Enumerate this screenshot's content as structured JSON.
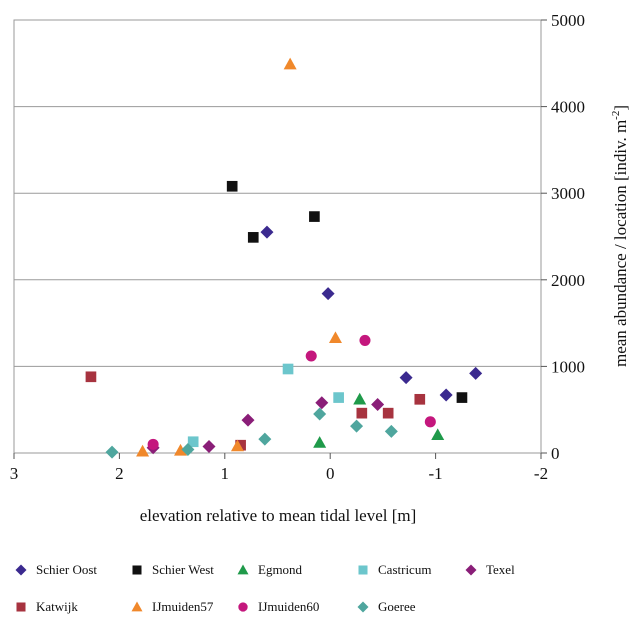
{
  "chart_data": {
    "type": "scatter",
    "title": "",
    "xlabel": "elevation relative to mean tidal level [m]",
    "ylabel": "mean abundance / location [indiv. m",
    "ylabel_sup": "-2",
    "ylabel_end": "]",
    "xlim": [
      3,
      -2
    ],
    "ylim": [
      0,
      5000
    ],
    "x_reversed": true,
    "x_ticks": [
      "3",
      "2",
      "1",
      "0",
      "-1",
      "-2"
    ],
    "x_tick_values": [
      3,
      2,
      1,
      0,
      -1,
      -2
    ],
    "y_ticks": [
      "0",
      "1000",
      "2000",
      "3000",
      "4000",
      "5000"
    ],
    "y_tick_values": [
      0,
      1000,
      2000,
      3000,
      4000,
      5000
    ],
    "y_axis_side": "right",
    "grid": "horizontal",
    "legend_position": "bottom",
    "series": [
      {
        "name": "Schier Oost",
        "marker": "diamond",
        "color": "#3b2a8f",
        "points": [
          [
            0.6,
            2550
          ],
          [
            0.02,
            1840
          ],
          [
            -0.72,
            870
          ],
          [
            -1.1,
            670
          ],
          [
            -1.38,
            920
          ]
        ]
      },
      {
        "name": "Schier West",
        "marker": "square",
        "color": "#111111",
        "points": [
          [
            0.93,
            3080
          ],
          [
            0.15,
            2730
          ],
          [
            0.73,
            2490
          ],
          [
            -1.25,
            640
          ]
        ]
      },
      {
        "name": "Egmond",
        "marker": "triangle",
        "color": "#1f9a4a",
        "points": [
          [
            0.1,
            120
          ],
          [
            -0.28,
            620
          ],
          [
            -1.02,
            210
          ]
        ]
      },
      {
        "name": "Castricum",
        "marker": "square",
        "color": "#6cc6cc",
        "points": [
          [
            0.4,
            970
          ],
          [
            -0.08,
            640
          ],
          [
            1.3,
            130
          ]
        ]
      },
      {
        "name": "Texel",
        "marker": "diamond",
        "color": "#8a1e78",
        "points": [
          [
            0.78,
            380
          ],
          [
            1.15,
            75
          ],
          [
            0.08,
            580
          ],
          [
            -0.45,
            560
          ],
          [
            1.68,
            60
          ]
        ]
      },
      {
        "name": "Katwijk",
        "marker": "square",
        "color": "#a7333f",
        "points": [
          [
            2.27,
            880
          ],
          [
            -0.3,
            460
          ],
          [
            -0.55,
            460
          ],
          [
            -0.85,
            620
          ],
          [
            0.85,
            90
          ]
        ]
      },
      {
        "name": "IJmuiden57",
        "marker": "triangle",
        "color": "#f0882b",
        "points": [
          [
            0.38,
            4490
          ],
          [
            -0.05,
            1330
          ],
          [
            1.78,
            20
          ],
          [
            1.42,
            30
          ],
          [
            0.88,
            80
          ]
        ]
      },
      {
        "name": "IJmuiden60",
        "marker": "circle",
        "color": "#c4177d",
        "points": [
          [
            0.18,
            1120
          ],
          [
            -0.33,
            1300
          ],
          [
            -0.95,
            360
          ],
          [
            1.68,
            100
          ]
        ]
      },
      {
        "name": "Goeree",
        "marker": "diamond",
        "color": "#4fa69e",
        "points": [
          [
            0.1,
            450
          ],
          [
            0.62,
            160
          ],
          [
            -0.25,
            310
          ],
          [
            -0.58,
            250
          ],
          [
            2.07,
            10
          ],
          [
            1.35,
            40
          ]
        ]
      }
    ]
  },
  "legend_rows": [
    [
      0,
      1,
      2,
      3,
      4
    ],
    [
      5,
      6,
      7,
      8
    ]
  ]
}
